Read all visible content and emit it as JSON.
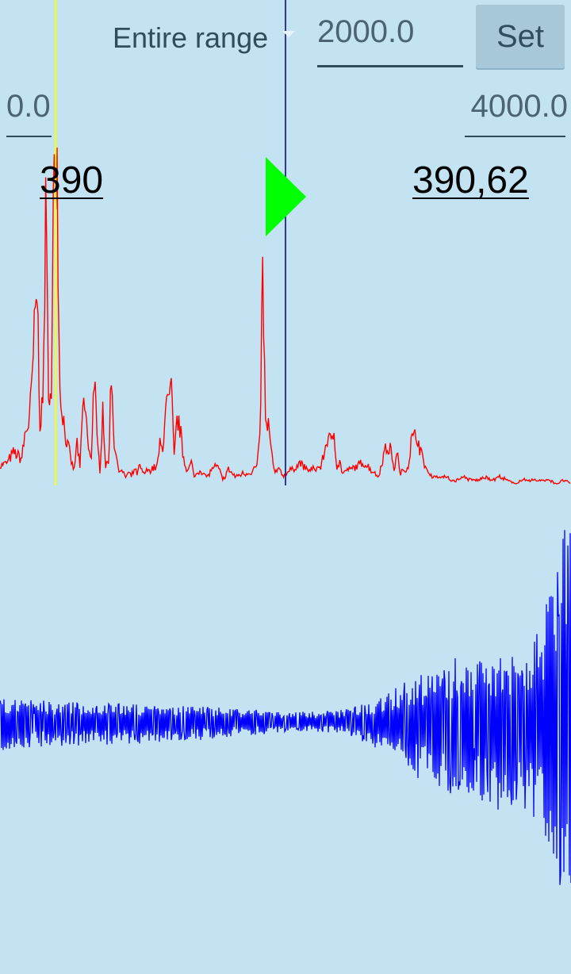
{
  "controls": {
    "range_mode": "Entire range",
    "center_frequency": "2000.0",
    "set_label": "Set",
    "min_frequency": "0.0",
    "max_frequency": "4000.0"
  },
  "readouts": {
    "peak_left": "390",
    "peak_right": "390,62"
  },
  "icons": {
    "play": "play-icon"
  },
  "colors": {
    "background": "#c4e3f2",
    "spectrum": "#ff0000",
    "waveform": "#0000ff",
    "peak_marker": "#ffff00",
    "cursor_marker": "#000080",
    "play": "#00ff00"
  },
  "chart_data": [
    {
      "type": "line",
      "title": "",
      "xlabel": "",
      "ylabel": "",
      "xlim": [
        0,
        4000
      ],
      "ylim": [
        0,
        1
      ],
      "grid": false,
      "markers": [
        {
          "name": "peak",
          "x": 390
        },
        {
          "name": "cursor",
          "x": 2000
        }
      ],
      "series": [
        {
          "x": [
            0,
            50,
            100,
            150,
            180,
            200,
            220,
            240,
            260,
            280,
            300,
            320,
            340,
            360,
            380,
            390,
            400,
            420,
            440,
            460,
            480,
            500,
            520,
            540,
            560,
            580,
            600,
            620,
            640,
            660,
            680,
            700,
            720,
            740,
            760,
            780,
            800,
            820,
            840,
            860,
            880,
            900,
            920,
            940,
            960,
            980,
            1000,
            1050,
            1100,
            1120,
            1140,
            1160,
            1180,
            1200,
            1220,
            1240,
            1260,
            1280,
            1300,
            1320,
            1340,
            1360,
            1400,
            1450,
            1500,
            1540,
            1560,
            1600,
            1650,
            1700,
            1750,
            1800,
            1820,
            1840,
            1850,
            1860,
            1880,
            1900,
            1920,
            1940,
            1960,
            1980,
            2000,
            2050,
            2100,
            2150,
            2200,
            2250,
            2300,
            2320,
            2340,
            2360,
            2380,
            2400,
            2450,
            2500,
            2550,
            2600,
            2650,
            2700,
            2740,
            2760,
            2780,
            2800,
            2840,
            2860,
            2880,
            2920,
            2960,
            3000,
            3040,
            3080,
            3120,
            3160,
            3200,
            3250,
            3300,
            3350,
            3400,
            3450,
            3500,
            3550,
            3600,
            3650,
            3700,
            3750,
            3800,
            3850,
            3900,
            3950,
            4000
          ],
          "values": [
            0.05,
            0.06,
            0.09,
            0.07,
            0.15,
            0.17,
            0.25,
            0.42,
            0.55,
            0.18,
            0.22,
            0.75,
            0.3,
            0.22,
            0.98,
            1.0,
            0.9,
            0.26,
            0.2,
            0.13,
            0.1,
            0.06,
            0.04,
            0.12,
            0.04,
            0.22,
            0.21,
            0.09,
            0.08,
            0.32,
            0.12,
            0.04,
            0.22,
            0.05,
            0.06,
            0.32,
            0.12,
            0.06,
            0.04,
            0.03,
            0.02,
            0.03,
            0.02,
            0.04,
            0.03,
            0.05,
            0.03,
            0.04,
            0.05,
            0.11,
            0.09,
            0.24,
            0.22,
            0.27,
            0.07,
            0.18,
            0.16,
            0.09,
            0.05,
            0.04,
            0.06,
            0.02,
            0.04,
            0.02,
            0.05,
            0.04,
            0.01,
            0.04,
            0.02,
            0.03,
            0.03,
            0.05,
            0.12,
            0.59,
            0.4,
            0.16,
            0.17,
            0.09,
            0.04,
            0.03,
            0.05,
            0.02,
            0.03,
            0.04,
            0.06,
            0.04,
            0.04,
            0.05,
            0.14,
            0.11,
            0.15,
            0.05,
            0.06,
            0.03,
            0.04,
            0.05,
            0.06,
            0.04,
            0.02,
            0.1,
            0.1,
            0.03,
            0.1,
            0.03,
            0.04,
            0.05,
            0.12,
            0.14,
            0.07,
            0.03,
            0.02,
            0.02,
            0.02,
            0.01,
            0.01,
            0.02,
            0.01,
            0.01,
            0.02,
            0.01,
            0.02,
            0.01,
            0.0,
            0.01,
            0.01,
            0.01,
            0.01,
            0.01,
            0.0,
            0.01,
            0.0
          ]
        }
      ]
    },
    {
      "type": "line",
      "title": "",
      "xlabel": "",
      "ylabel": "",
      "grid": false,
      "series": [
        {
          "envelope_x": [
            0,
            0.1,
            0.2,
            0.3,
            0.4,
            0.5,
            0.55,
            0.6,
            0.65,
            0.7,
            0.72,
            0.75,
            0.78,
            0.8,
            0.82,
            0.85,
            0.88,
            0.9,
            0.92,
            0.95,
            0.97,
            1.0
          ],
          "envelope_upper": [
            0.12,
            0.1,
            0.09,
            0.08,
            0.07,
            0.05,
            0.05,
            0.06,
            0.1,
            0.18,
            0.22,
            0.24,
            0.27,
            0.33,
            0.28,
            0.34,
            0.37,
            0.38,
            0.4,
            0.45,
            0.9,
            1.0
          ],
          "envelope_lower": [
            -0.15,
            -0.12,
            -0.12,
            -0.1,
            -0.08,
            -0.05,
            -0.05,
            -0.06,
            -0.12,
            -0.18,
            -0.3,
            -0.3,
            -0.35,
            -0.4,
            -0.35,
            -0.4,
            -0.45,
            -0.5,
            -0.52,
            -0.6,
            -0.75,
            -1.0
          ]
        }
      ]
    }
  ]
}
